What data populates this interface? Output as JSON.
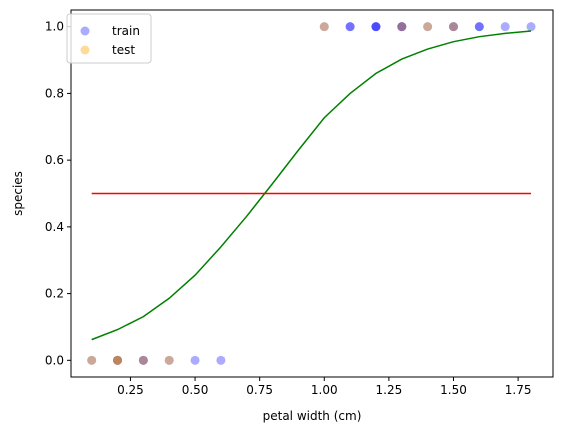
{
  "chart_data": {
    "type": "scatter",
    "xlabel": "petal width (cm)",
    "ylabel": "species",
    "xlim": [
      0.02,
      1.885
    ],
    "ylim": [
      -0.05,
      1.05
    ],
    "x_ticks": [
      "0.25",
      "0.50",
      "0.75",
      "1.00",
      "1.25",
      "1.50",
      "1.75"
    ],
    "x_tick_values": [
      0.25,
      0.5,
      0.75,
      1.0,
      1.25,
      1.5,
      1.75
    ],
    "y_ticks": [
      "0.0",
      "0.2",
      "0.4",
      "0.6",
      "0.8",
      "1.0"
    ],
    "y_tick_values": [
      0.0,
      0.2,
      0.4,
      0.6,
      0.8,
      1.0
    ],
    "grid": false,
    "legend_position": "top-left",
    "scatter_series": [
      {
        "name": "train",
        "color": "#0000ff",
        "alpha": 0.33,
        "points": [
          [
            0.1,
            0
          ],
          [
            0.2,
            0
          ],
          [
            0.2,
            0
          ],
          [
            0.2,
            0
          ],
          [
            0.3,
            0
          ],
          [
            0.3,
            0
          ],
          [
            0.4,
            0
          ],
          [
            0.5,
            0
          ],
          [
            0.6,
            0
          ],
          [
            1.0,
            1
          ],
          [
            1.1,
            1
          ],
          [
            1.1,
            1
          ],
          [
            1.2,
            1
          ],
          [
            1.2,
            1
          ],
          [
            1.2,
            1
          ],
          [
            1.3,
            1
          ],
          [
            1.3,
            1
          ],
          [
            1.3,
            1
          ],
          [
            1.4,
            1
          ],
          [
            1.5,
            1
          ],
          [
            1.5,
            1
          ],
          [
            1.6,
            1
          ],
          [
            1.6,
            1
          ],
          [
            1.7,
            1
          ],
          [
            1.8,
            1
          ]
        ]
      },
      {
        "name": "test",
        "color": "#ffa500",
        "alpha": 0.4,
        "points": [
          [
            0.1,
            0
          ],
          [
            0.2,
            0
          ],
          [
            0.2,
            0
          ],
          [
            0.3,
            0
          ],
          [
            0.4,
            0
          ],
          [
            1.0,
            1
          ],
          [
            1.3,
            1
          ],
          [
            1.4,
            1
          ],
          [
            1.5,
            1
          ]
        ]
      }
    ],
    "line_series": [
      {
        "color": "#008000",
        "x": [
          0.1,
          0.2,
          0.3,
          0.4,
          0.5,
          0.6,
          0.7,
          0.8,
          0.9,
          1.0,
          1.1,
          1.2,
          1.3,
          1.4,
          1.5,
          1.6,
          1.7,
          1.8
        ],
        "y": [
          0.062,
          0.092,
          0.131,
          0.186,
          0.255,
          0.34,
          0.432,
          0.53,
          0.63,
          0.727,
          0.8,
          0.86,
          0.903,
          0.933,
          0.955,
          0.97,
          0.98,
          0.987
        ]
      },
      {
        "color": "#ff0000",
        "x": [
          0.1,
          1.8
        ],
        "y": [
          0.5,
          0.5
        ]
      }
    ]
  }
}
